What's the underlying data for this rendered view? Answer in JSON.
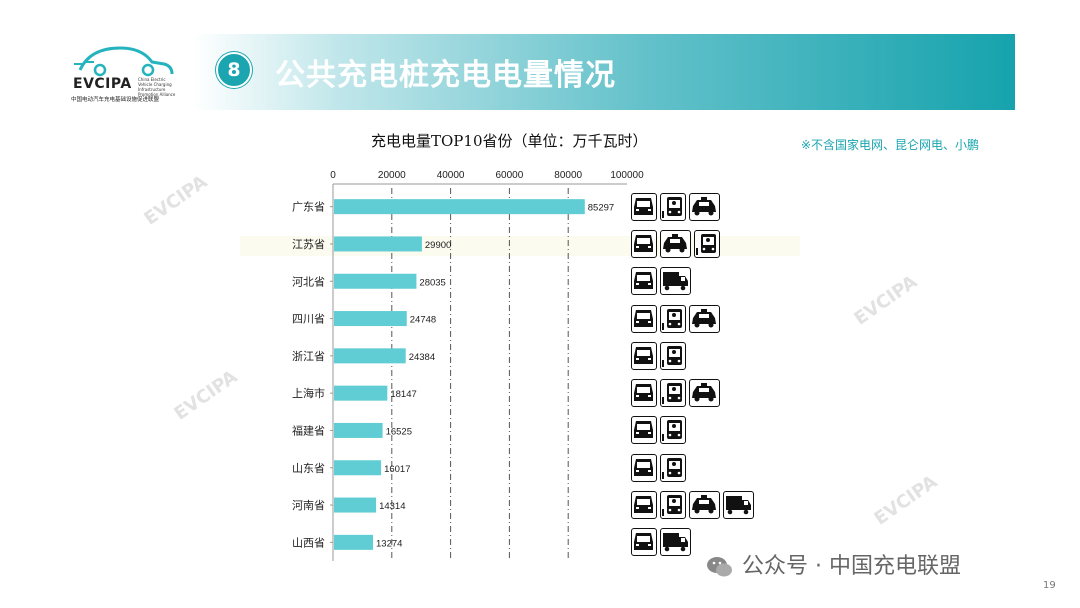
{
  "header": {
    "badge_number": "8",
    "title": "公共充电桩充电电量情况",
    "band_color": "#16a3ad"
  },
  "logo": {
    "name": "EVCIPA",
    "english": "China Electric Vehicle Charging Infrastructure Promotion Alliance",
    "chinese": "中国电动汽车充电基础设施促进联盟"
  },
  "note": "※不含国家电网、昆仑网电、小鹏",
  "chart_data": {
    "type": "bar",
    "orientation": "horizontal",
    "title": "充电电量TOP10省份（单位：万千瓦时）",
    "categories": [
      "广东省",
      "江苏省",
      "河北省",
      "四川省",
      "浙江省",
      "上海市",
      "福建省",
      "山东省",
      "河南省",
      "山西省"
    ],
    "values": [
      85297,
      29900,
      28035,
      24748,
      24384,
      18147,
      16525,
      16017,
      14314,
      13274
    ],
    "x_ticks": [
      0,
      20000,
      40000,
      60000,
      80000,
      100000
    ],
    "xlim": [
      0,
      100000
    ],
    "bar_color": "#5fcdd3",
    "gridlines": "dashed vertical",
    "xlabel": "",
    "ylabel": ""
  },
  "vehicle_icons": [
    [
      "car-icon",
      "bus-icon",
      "taxi-icon"
    ],
    [
      "car-icon",
      "taxi-icon",
      "bus-icon"
    ],
    [
      "car-icon",
      "truck-icon"
    ],
    [
      "car-icon",
      "bus-icon",
      "taxi-icon"
    ],
    [
      "car-icon",
      "bus-icon"
    ],
    [
      "car-icon",
      "bus-icon",
      "taxi-icon"
    ],
    [
      "car-icon",
      "bus-icon"
    ],
    [
      "car-icon",
      "bus-icon"
    ],
    [
      "car-icon",
      "bus-icon",
      "taxi-icon",
      "truck-icon"
    ],
    [
      "car-icon",
      "truck-icon"
    ]
  ],
  "watermark": "EVCIPA",
  "footer": {
    "social": "公众号 · 中国充电联盟",
    "page_number": "19"
  }
}
